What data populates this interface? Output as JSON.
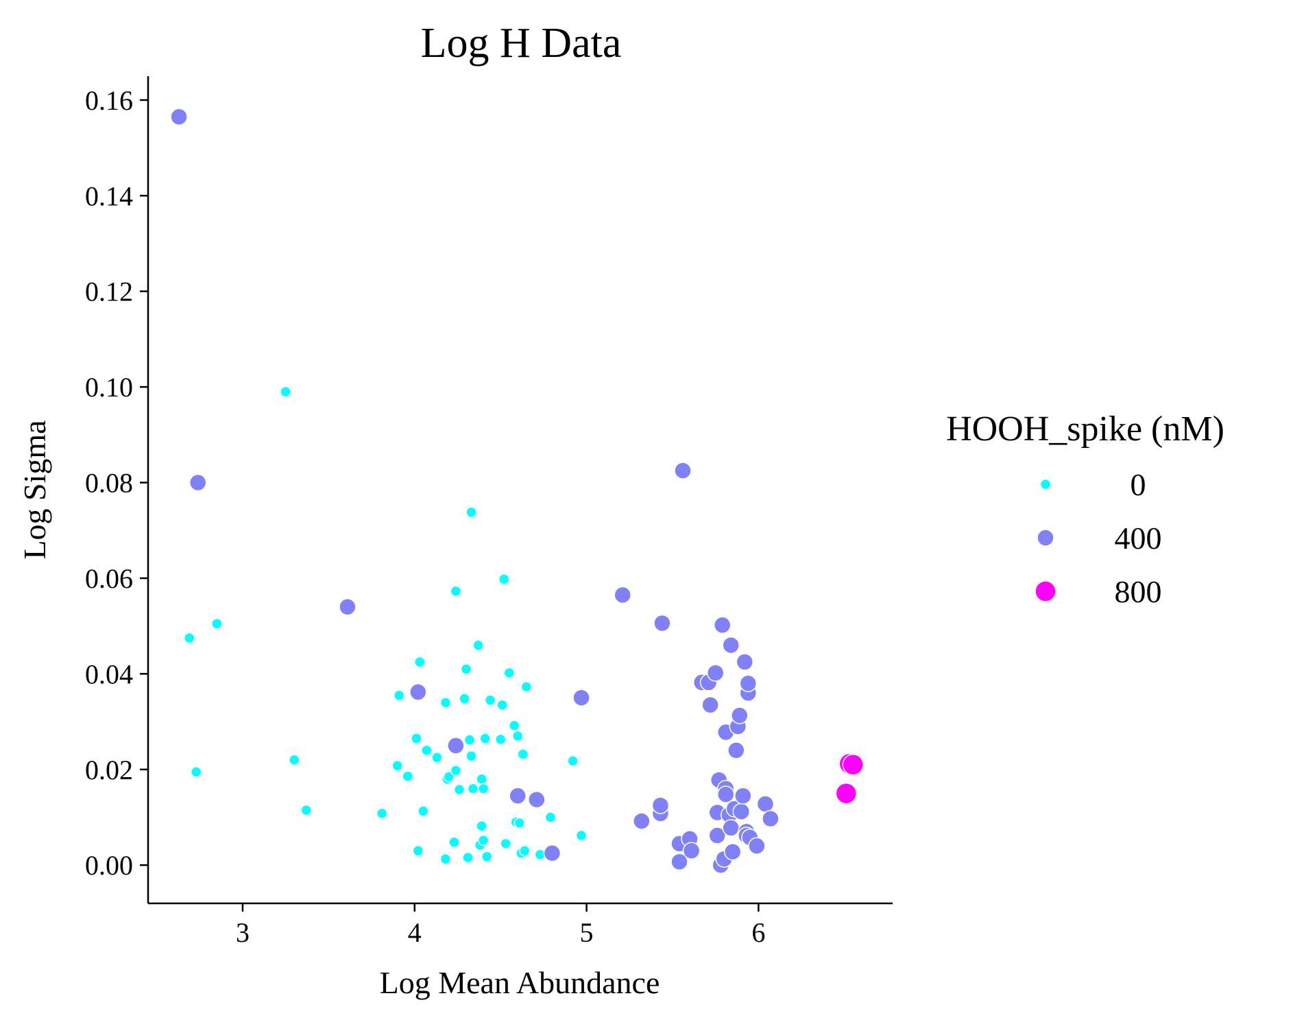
{
  "chart_data": {
    "type": "scatter",
    "title": "Log H Data",
    "xlabel": "Log Mean Abundance",
    "ylabel": "Log Sigma",
    "xlim": [
      2.45,
      6.78
    ],
    "ylim": [
      -0.008,
      0.165
    ],
    "xticks": [
      3,
      4,
      5,
      6
    ],
    "xtick_labels": [
      "3",
      "4",
      "5",
      "6"
    ],
    "yticks": [
      0.0,
      0.02,
      0.04,
      0.06,
      0.08,
      0.1,
      0.12,
      0.14,
      0.16
    ],
    "ytick_labels": [
      "0.00",
      "0.02",
      "0.04",
      "0.06",
      "0.08",
      "0.10",
      "0.12",
      "0.14",
      "0.16"
    ],
    "grid": false,
    "legend": {
      "title": "HOOH_spike (nM)",
      "placement": "right",
      "entries": [
        "0",
        "400",
        "800"
      ]
    },
    "series": [
      {
        "name": "0",
        "color": "#00ffff",
        "size": "small",
        "points": [
          [
            2.69,
            0.0475
          ],
          [
            2.73,
            0.0195
          ],
          [
            2.85,
            0.0505
          ],
          [
            3.25,
            0.099
          ],
          [
            3.3,
            0.022
          ],
          [
            3.37,
            0.0115
          ],
          [
            3.81,
            0.0108
          ],
          [
            3.9,
            0.0208
          ],
          [
            3.91,
            0.0355
          ],
          [
            3.96,
            0.0186
          ],
          [
            4.01,
            0.0265
          ],
          [
            4.02,
            0.003
          ],
          [
            4.03,
            0.0425
          ],
          [
            4.05,
            0.0113
          ],
          [
            4.07,
            0.024
          ],
          [
            4.13,
            0.0225
          ],
          [
            4.18,
            0.034
          ],
          [
            4.18,
            0.0013
          ],
          [
            4.19,
            0.018
          ],
          [
            4.2,
            0.0185
          ],
          [
            4.23,
            0.0048
          ],
          [
            4.24,
            0.0573
          ],
          [
            4.24,
            0.0198
          ],
          [
            4.26,
            0.0158
          ],
          [
            4.29,
            0.0348
          ],
          [
            4.3,
            0.041
          ],
          [
            4.31,
            0.0016
          ],
          [
            4.32,
            0.0262
          ],
          [
            4.33,
            0.0228
          ],
          [
            4.33,
            0.0738
          ],
          [
            4.34,
            0.016
          ],
          [
            4.37,
            0.046
          ],
          [
            4.38,
            0.0042
          ],
          [
            4.39,
            0.018
          ],
          [
            4.39,
            0.0082
          ],
          [
            4.4,
            0.0052
          ],
          [
            4.4,
            0.016
          ],
          [
            4.41,
            0.0265
          ],
          [
            4.42,
            0.0018
          ],
          [
            4.44,
            0.0345
          ],
          [
            4.5,
            0.0263
          ],
          [
            4.51,
            0.0335
          ],
          [
            4.52,
            0.0598
          ],
          [
            4.53,
            0.0045
          ],
          [
            4.55,
            0.0402
          ],
          [
            4.58,
            0.0292
          ],
          [
            4.59,
            0.009
          ],
          [
            4.6,
            0.027
          ],
          [
            4.61,
            0.0088
          ],
          [
            4.62,
            0.0025
          ],
          [
            4.63,
            0.0232
          ],
          [
            4.64,
            0.003
          ],
          [
            4.65,
            0.0373
          ],
          [
            4.73,
            0.0022
          ],
          [
            4.79,
            0.01
          ],
          [
            4.92,
            0.0218
          ],
          [
            4.97,
            0.0062
          ]
        ]
      },
      {
        "name": "400",
        "color": "#8080f7",
        "size": "medium",
        "points": [
          [
            2.63,
            0.1565
          ],
          [
            2.74,
            0.08
          ],
          [
            3.61,
            0.054
          ],
          [
            4.02,
            0.0362
          ],
          [
            4.24,
            0.025
          ],
          [
            4.6,
            0.0145
          ],
          [
            4.71,
            0.0137
          ],
          [
            4.8,
            0.0025
          ],
          [
            4.97,
            0.035
          ],
          [
            5.21,
            0.0565
          ],
          [
            5.32,
            0.0092
          ],
          [
            5.43,
            0.0108
          ],
          [
            5.43,
            0.0125
          ],
          [
            5.44,
            0.0506
          ],
          [
            5.54,
            0.0045
          ],
          [
            5.54,
            0.0007
          ],
          [
            5.56,
            0.0825
          ],
          [
            5.6,
            0.0055
          ],
          [
            5.61,
            0.003
          ],
          [
            5.67,
            0.0382
          ],
          [
            5.71,
            0.0382
          ],
          [
            5.72,
            0.0335
          ],
          [
            5.75,
            0.0402
          ],
          [
            5.76,
            0.011
          ],
          [
            5.76,
            0.0062
          ],
          [
            5.77,
            0.0178
          ],
          [
            5.78,
            0.0
          ],
          [
            5.79,
            0.0502
          ],
          [
            5.8,
            0.0013
          ],
          [
            5.81,
            0.0278
          ],
          [
            5.81,
            0.016
          ],
          [
            5.81,
            0.0148
          ],
          [
            5.83,
            0.0105
          ],
          [
            5.84,
            0.046
          ],
          [
            5.84,
            0.0078
          ],
          [
            5.85,
            0.0028
          ],
          [
            5.86,
            0.0118
          ],
          [
            5.87,
            0.024
          ],
          [
            5.88,
            0.029
          ],
          [
            5.89,
            0.0313
          ],
          [
            5.9,
            0.0112
          ],
          [
            5.91,
            0.0145
          ],
          [
            5.92,
            0.0425
          ],
          [
            5.93,
            0.007
          ],
          [
            5.93,
            0.0062
          ],
          [
            5.94,
            0.036
          ],
          [
            5.94,
            0.038
          ],
          [
            5.95,
            0.0058
          ],
          [
            5.99,
            0.004
          ],
          [
            6.04,
            0.0128
          ],
          [
            6.07,
            0.0097
          ]
        ]
      },
      {
        "name": "800",
        "color": "#ff00ff",
        "size": "large",
        "points": [
          [
            6.51,
            0.015
          ],
          [
            6.53,
            0.0212
          ],
          [
            6.55,
            0.021
          ]
        ]
      }
    ]
  }
}
